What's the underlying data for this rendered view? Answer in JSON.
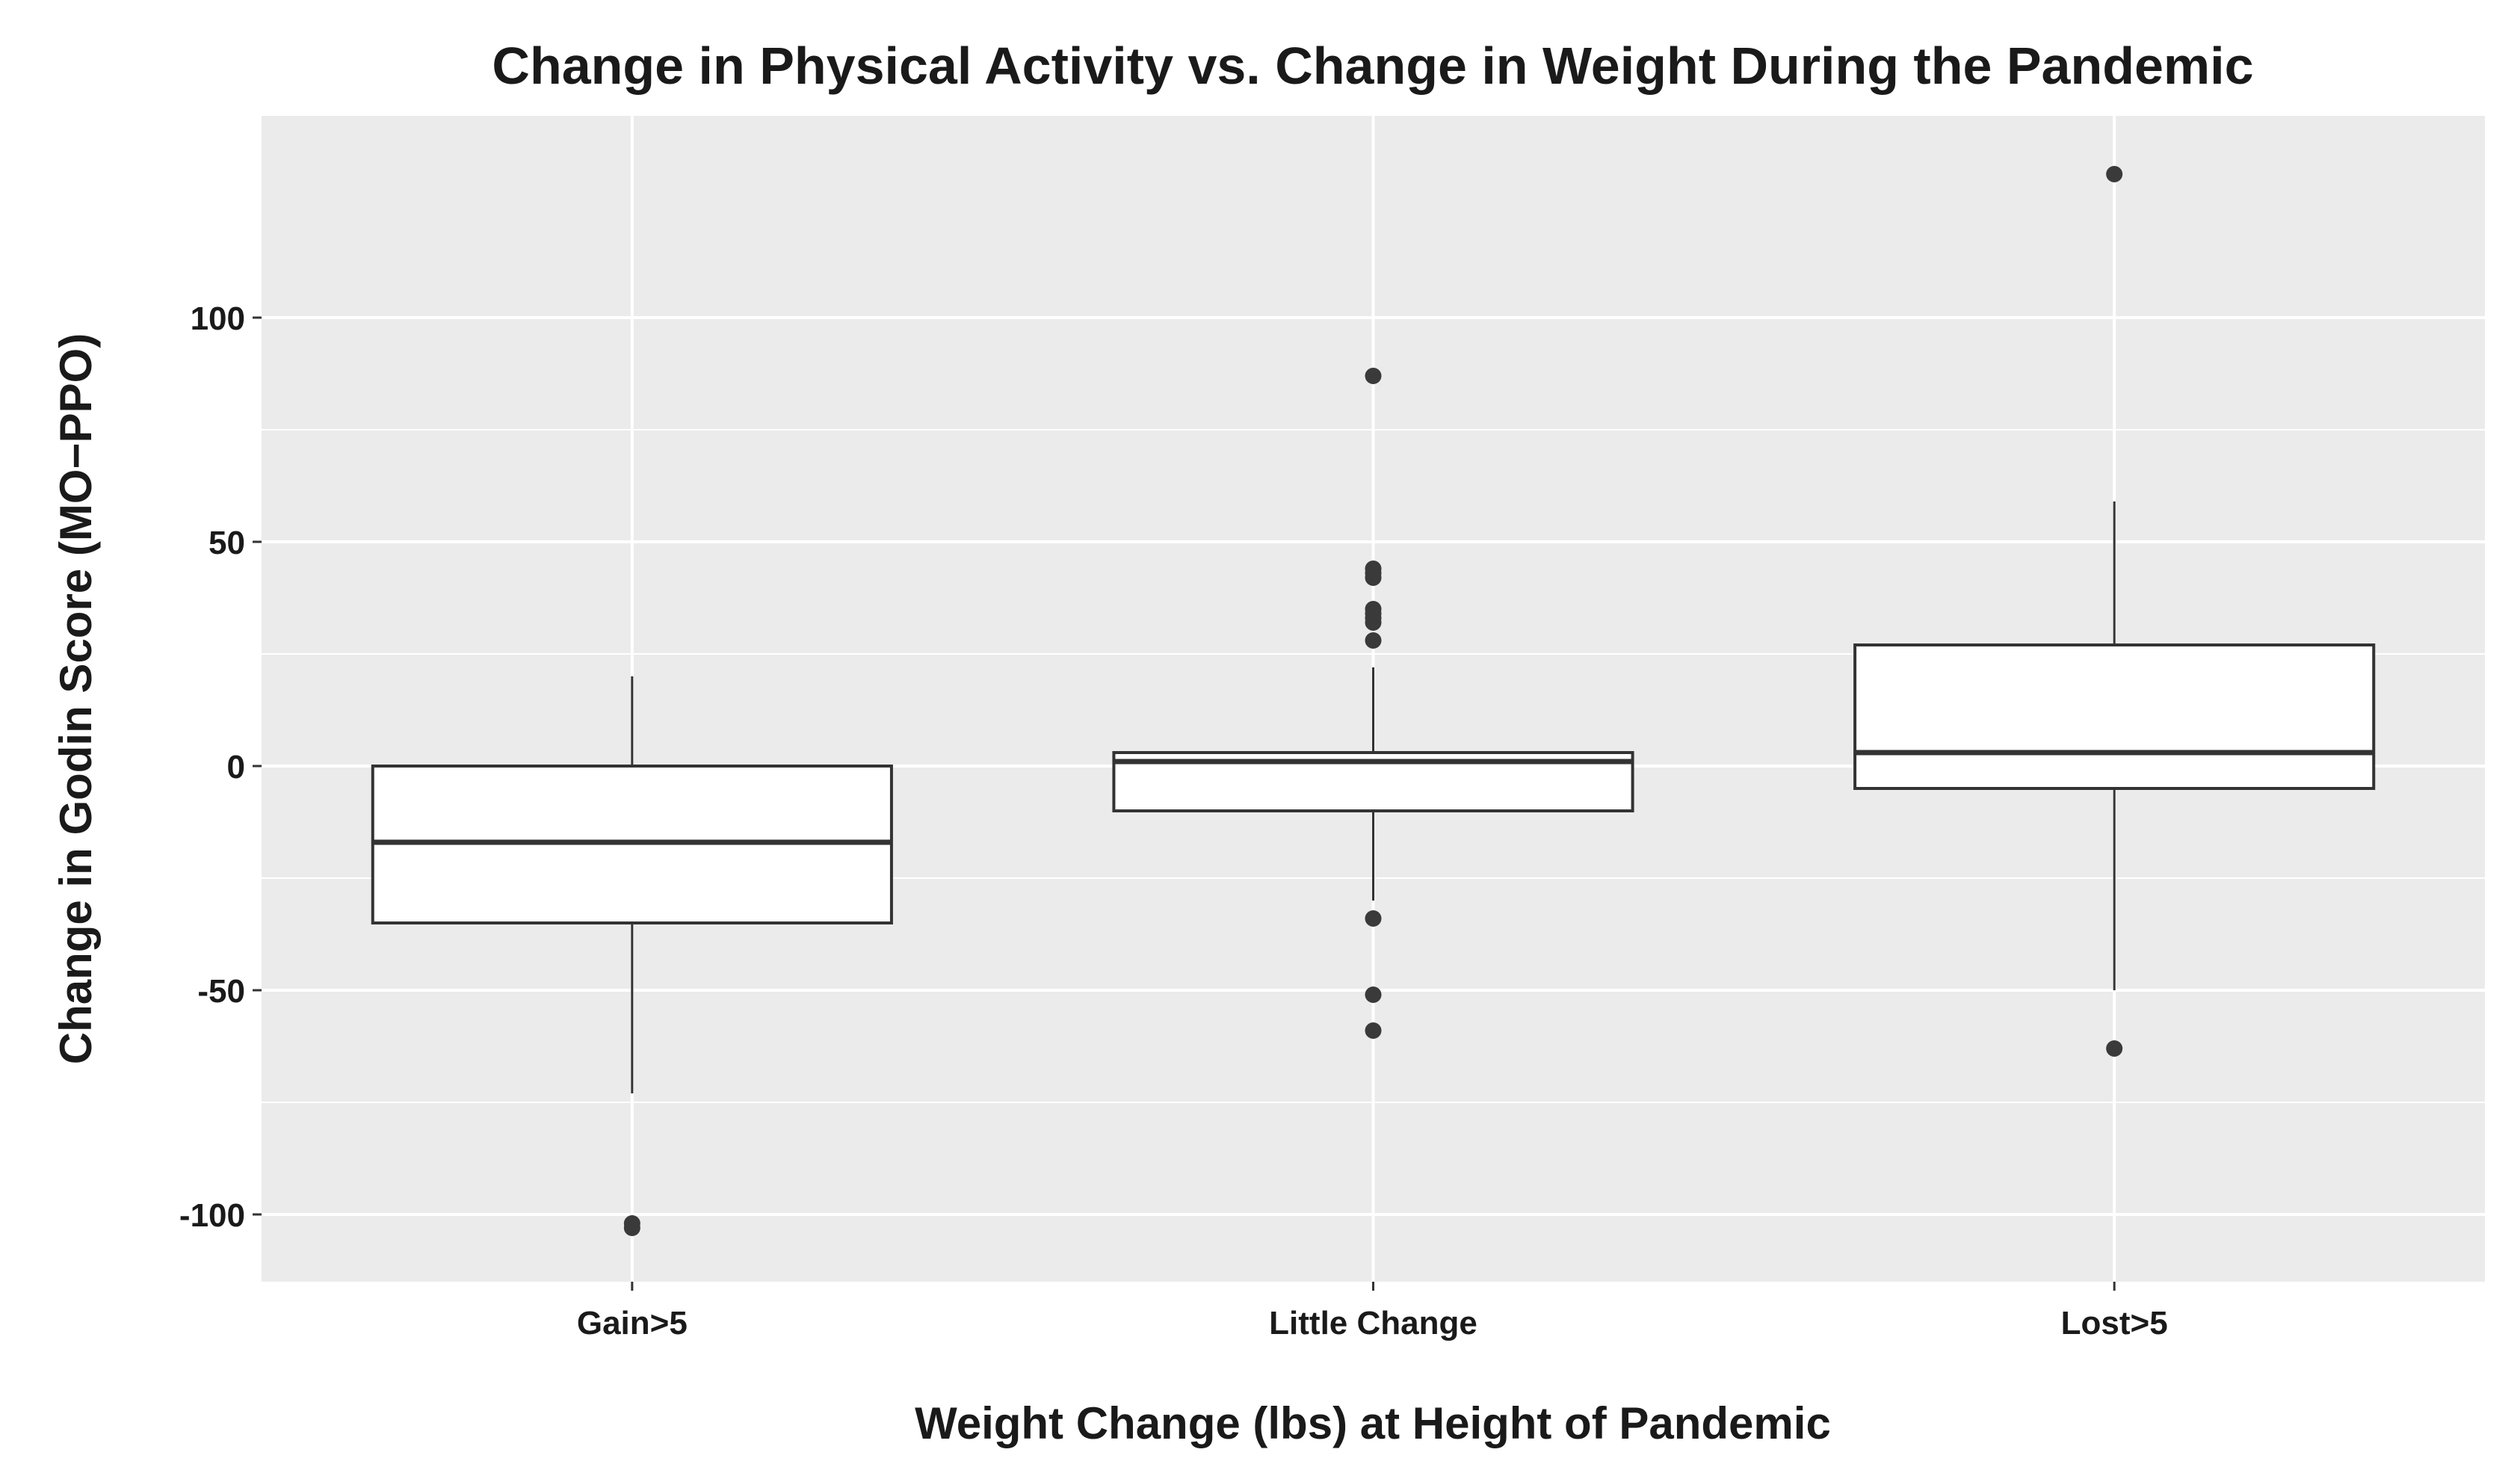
{
  "chart_data": {
    "type": "boxplot",
    "title": "Change in Physical Activity vs. Change in Weight During the Pandemic",
    "xlabel": "Weight Change (lbs) at Height of Pandemic",
    "ylabel": "Change in Godin Score  (MO−PPO)",
    "ylim": [
      -115,
      145
    ],
    "yticks": [
      -100,
      -50,
      0,
      50,
      100
    ],
    "ytick_labels": [
      "-100",
      "-50",
      "0",
      "50",
      "100"
    ],
    "categories": [
      "Gain>5",
      "Little Change",
      "Lost>5"
    ],
    "boxes": [
      {
        "category": "Gain>5",
        "whisker_low": -73,
        "q1": -35,
        "median": -17,
        "q3": 0,
        "whisker_high": 20,
        "outliers": [
          -102,
          -103
        ]
      },
      {
        "category": "Little Change",
        "whisker_low": -30,
        "q1": -10,
        "median": 1,
        "q3": 3,
        "whisker_high": 22,
        "outliers": [
          87,
          44,
          43,
          42,
          35,
          34,
          33,
          32,
          28,
          -34,
          -51,
          -59
        ]
      },
      {
        "category": "Lost>5",
        "whisker_low": -50,
        "q1": -5,
        "median": 3,
        "q3": 27,
        "whisker_high": 59,
        "outliers": [
          132,
          -63
        ]
      }
    ],
    "colors": {
      "panel": "#ebebeb",
      "grid": "#ffffff",
      "box_fill": "#ffffff",
      "box_line": "#333333",
      "outlier": "#3a3a3a"
    }
  }
}
